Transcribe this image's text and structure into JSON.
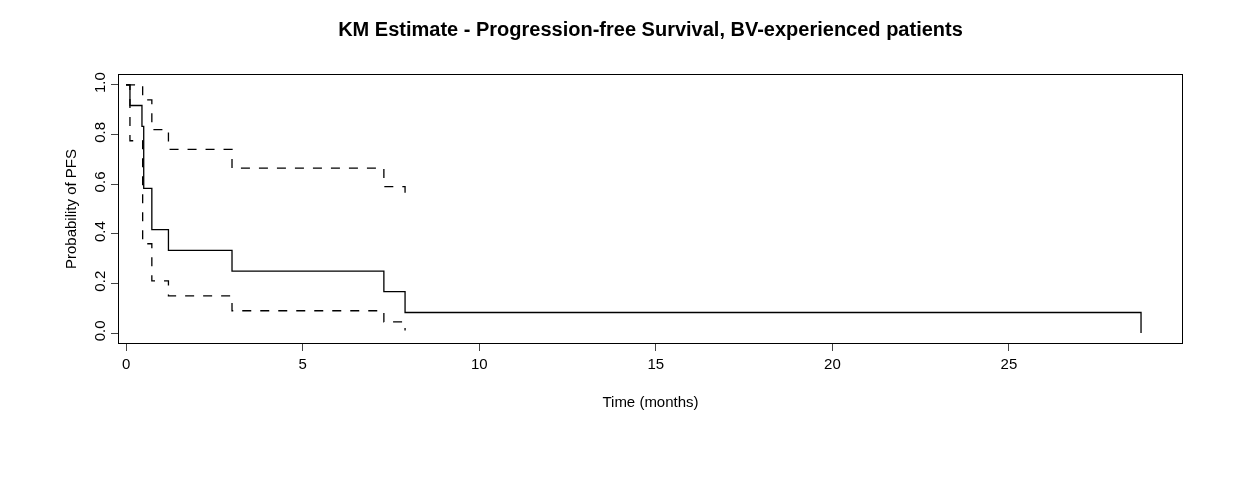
{
  "chart_data": {
    "type": "step",
    "title": "KM Estimate - Progression-free Survival, BV-experienced patients",
    "xlabel": "Time (months)",
    "ylabel": "Probability of PFS",
    "series": [
      {
        "color": "#000000",
        "line_style": "solid",
        "x": [
          0,
          0.11,
          0.45,
          0.5,
          0.73,
          1.2,
          3.0,
          7.3,
          7.9,
          28.74
        ],
        "values": [
          1,
          0.917,
          0.833,
          0.583,
          0.417,
          0.333,
          0.25,
          0.167,
          0.083,
          0
        ]
      },
      {
        "color": "#000000",
        "line_style": "dashed",
        "x": [
          0,
          0.47,
          0.73,
          1.2,
          3.0,
          7.3,
          7.9
        ],
        "values": [
          1,
          0.94,
          0.82,
          0.74,
          0.665,
          0.59,
          0.565
        ]
      },
      {
        "color": "#000000",
        "line_style": "dashed",
        "x": [
          0,
          0.11,
          0.47,
          0.73,
          1.2,
          3.0,
          7.3,
          7.9
        ],
        "values": [
          1,
          0.775,
          0.36,
          0.21,
          0.15,
          0.09,
          0.045,
          0.01
        ]
      }
    ],
    "xlim": [
      -0.2,
      29.9
    ],
    "ylim": [
      -0.04,
      1.04
    ],
    "xticks": [
      0,
      5,
      10,
      15,
      20,
      25
    ],
    "yticks": [
      {
        "value": 0,
        "label": "0.0"
      },
      {
        "value": 0.2,
        "label": "0.2"
      },
      {
        "value": 0.4,
        "label": "0.4"
      },
      {
        "value": 0.6,
        "label": "0.6"
      },
      {
        "value": 0.8,
        "label": "0.8"
      },
      {
        "value": 1,
        "label": "1.0"
      }
    ],
    "marker": "none"
  }
}
